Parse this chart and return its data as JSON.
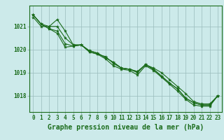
{
  "xlabel": "Graphe pression niveau de la mer (hPa)",
  "x": [
    0,
    1,
    2,
    3,
    4,
    5,
    6,
    7,
    8,
    9,
    10,
    11,
    12,
    13,
    14,
    15,
    16,
    17,
    18,
    19,
    20,
    21,
    22,
    23
  ],
  "line1": [
    1021.5,
    1021.1,
    1021.0,
    1021.3,
    1020.8,
    1020.2,
    1020.2,
    1019.9,
    1019.8,
    1019.7,
    1019.4,
    1019.2,
    1019.15,
    1019.0,
    1019.35,
    1019.2,
    1019.0,
    1018.7,
    1018.4,
    1018.1,
    1017.75,
    1017.65,
    1017.65,
    1018.0
  ],
  "line2": [
    1021.4,
    1021.0,
    1021.0,
    1021.0,
    1020.5,
    1020.2,
    1020.2,
    1019.9,
    1019.8,
    1019.6,
    1019.3,
    1019.15,
    1019.1,
    1018.9,
    1019.3,
    1019.1,
    1018.8,
    1018.5,
    1018.2,
    1017.85,
    1017.6,
    1017.55,
    1017.55,
    1018.0
  ],
  "line3": [
    1021.5,
    1021.1,
    1020.9,
    1020.7,
    1020.1,
    1020.15,
    1020.2,
    1019.95,
    1019.85,
    1019.65,
    1019.45,
    1019.2,
    1019.15,
    1019.05,
    1019.35,
    1019.15,
    1018.85,
    1018.55,
    1018.3,
    1017.9,
    1017.7,
    1017.6,
    1017.6,
    1018.0
  ],
  "line4": [
    1021.5,
    1021.1,
    1020.9,
    1020.8,
    1020.25,
    1020.15,
    1020.2,
    1019.95,
    1019.85,
    1019.65,
    1019.45,
    1019.2,
    1019.15,
    1019.05,
    1019.35,
    1019.15,
    1018.85,
    1018.55,
    1018.3,
    1017.9,
    1017.7,
    1017.6,
    1017.6,
    1018.0
  ],
  "ylim": [
    1017.3,
    1021.9
  ],
  "yticks": [
    1018,
    1019,
    1020,
    1021
  ],
  "line_color": "#1a6b1a",
  "marker_color": "#1a6b1a",
  "bg_color": "#cceaea",
  "grid_color": "#99bbbb",
  "text_color": "#1a6b1a",
  "marker": "*",
  "markersize": 3,
  "linewidth": 0.8,
  "xlabel_fontsize": 7,
  "tick_fontsize": 5.5
}
